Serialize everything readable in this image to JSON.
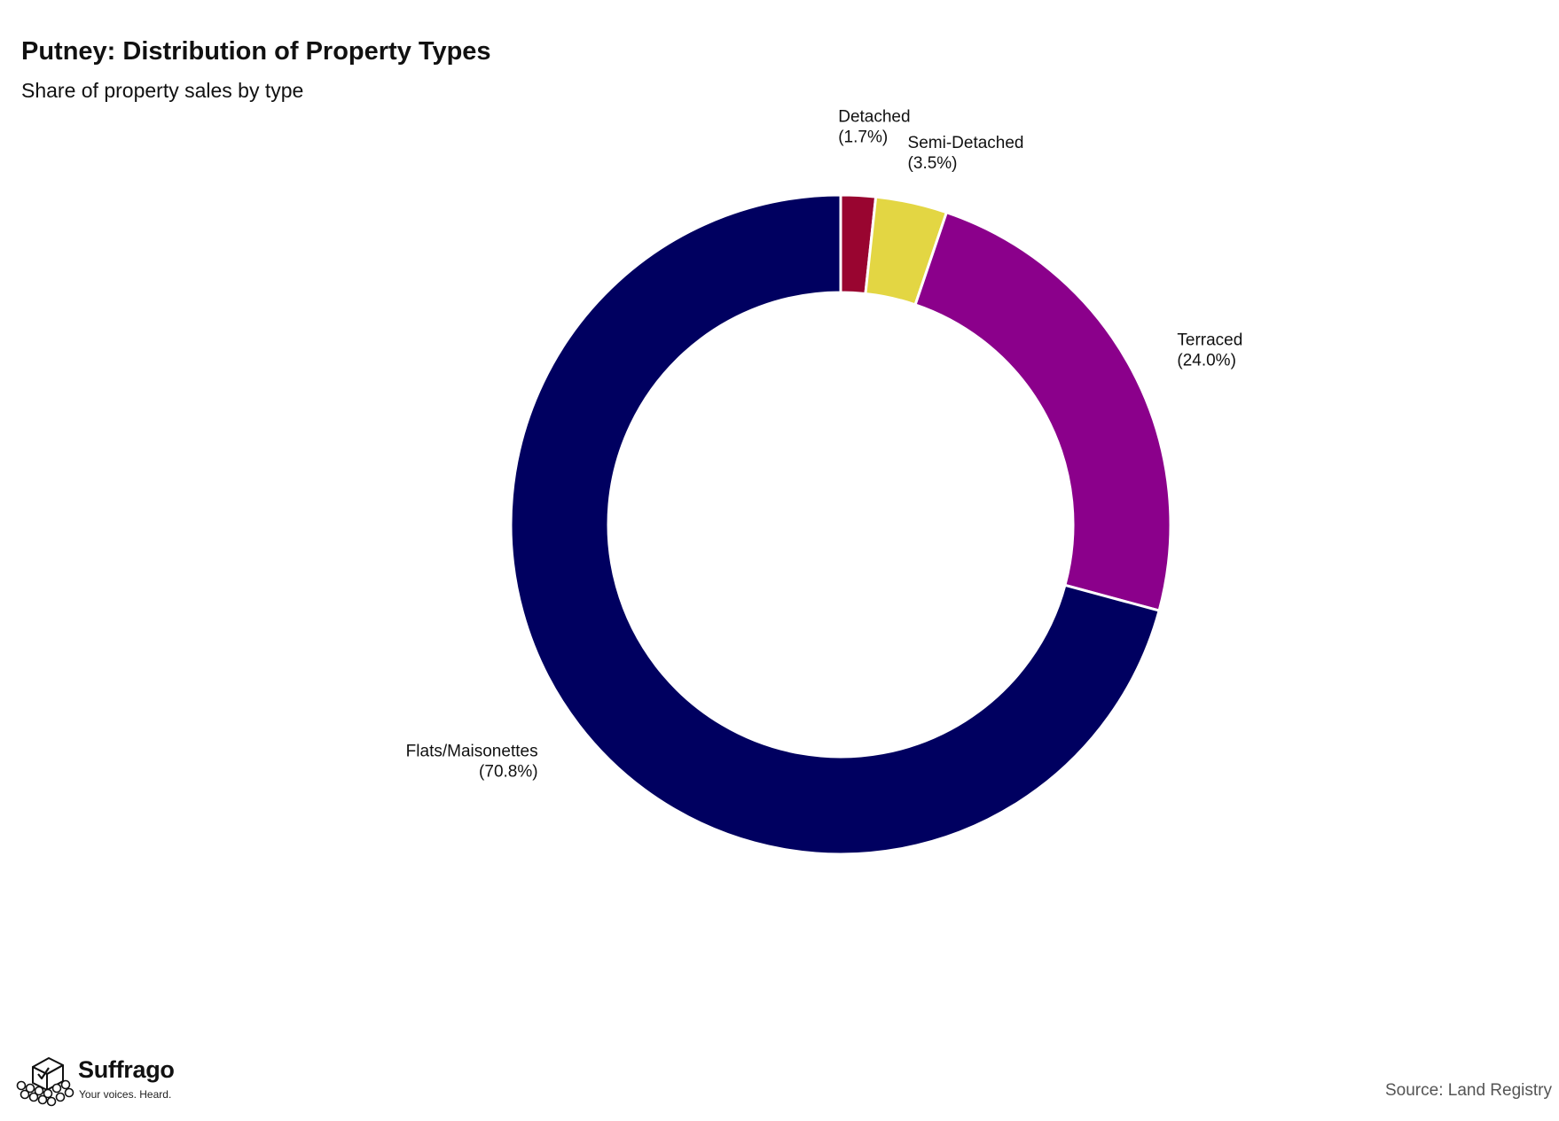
{
  "chart_data": {
    "type": "pie",
    "donut": true,
    "title": "Putney: Distribution of Property Types",
    "subtitle": "Share of property sales by type",
    "source": "Source: Land Registry",
    "slices": [
      {
        "label": "Detached",
        "pct_label": "(1.7%)",
        "value": 1.7,
        "color": "#990530"
      },
      {
        "label": "Semi-Detached",
        "pct_label": "(3.5%)",
        "value": 3.5,
        "color": "#e3d643"
      },
      {
        "label": "Terraced",
        "pct_label": "(24.0%)",
        "value": 24.0,
        "color": "#8b008b"
      },
      {
        "label": "Flats/Maisonettes",
        "pct_label": "(70.8%)",
        "value": 70.8,
        "color": "#000060"
      }
    ]
  },
  "brand": {
    "name": "Suffrago",
    "tagline": "Your voices. Heard."
  }
}
